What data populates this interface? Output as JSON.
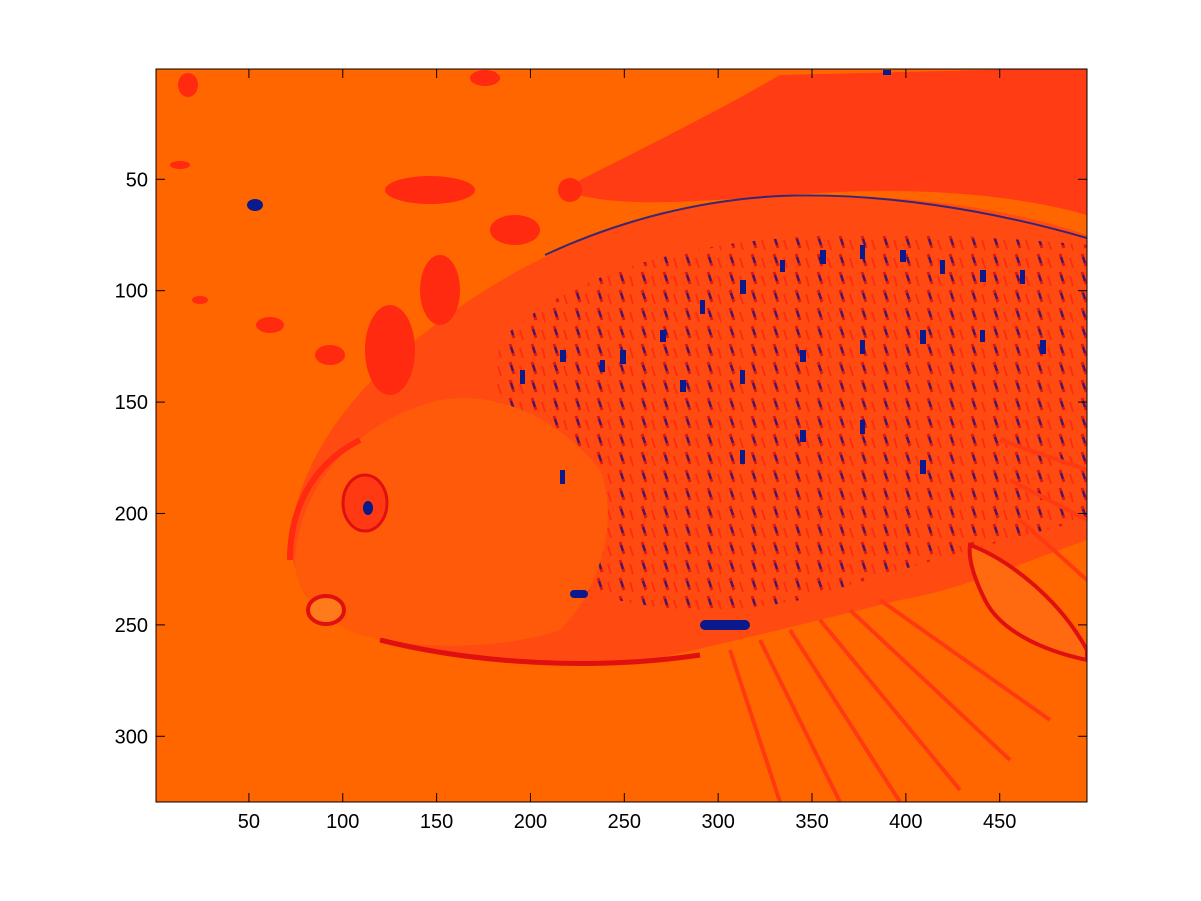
{
  "figure": {
    "background": "#ffffff",
    "image": {
      "description_type": "colormapped-image",
      "colors": {
        "base_orange": "#ff6600",
        "light_orange": "#ff7a1a",
        "red": "#ff2a10",
        "dark_red": "#e01010",
        "navy": "#0a1a8c"
      }
    },
    "x_axis": {
      "ticks": [
        "50",
        "100",
        "150",
        "200",
        "250",
        "300",
        "350",
        "400",
        "450"
      ],
      "tick_values": [
        50,
        100,
        150,
        200,
        250,
        300,
        350,
        400,
        450
      ],
      "range": [
        0.5,
        496.5
      ]
    },
    "y_axis": {
      "ticks": [
        "50",
        "100",
        "150",
        "200",
        "250",
        "300"
      ],
      "tick_values": [
        50,
        100,
        150,
        200,
        250,
        300
      ],
      "range": [
        0.5,
        329.5
      ],
      "direction": "reversed"
    }
  }
}
